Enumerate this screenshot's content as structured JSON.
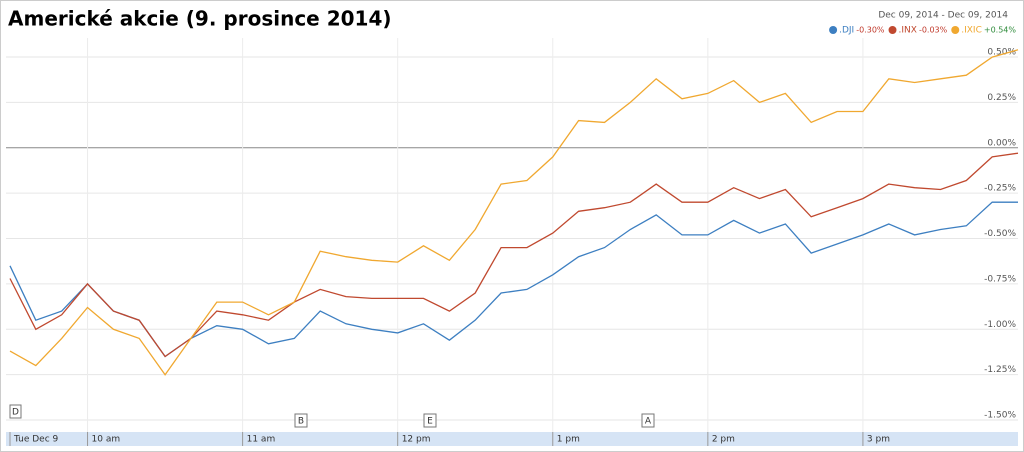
{
  "chart_data": {
    "type": "line",
    "title": "Americké akcie (9. prosince 2014)",
    "date_range": "Dec 09, 2014 - Dec 09, 2014",
    "annotations": [
      "D",
      "B",
      "E",
      "A"
    ],
    "categories": [
      "Tue Dec 9",
      null,
      null,
      "10 am",
      null,
      null,
      null,
      null,
      null,
      "11 am",
      null,
      null,
      null,
      null,
      null,
      "12 pm",
      null,
      null,
      null,
      null,
      null,
      "1 pm",
      null,
      null,
      null,
      null,
      null,
      "2 pm",
      null,
      null,
      null,
      null,
      null,
      "3 pm",
      null,
      null,
      null,
      null,
      null,
      null
    ],
    "series": [
      {
        "name": ".DJI",
        "change": "-0.30%",
        "change_color": "#c0392b",
        "color": "#3d7fc1",
        "values": [
          -0.65,
          -0.95,
          -0.9,
          -0.75,
          -0.9,
          -0.95,
          -1.15,
          -1.05,
          -0.98,
          -1.0,
          -1.08,
          -1.05,
          -0.9,
          -0.97,
          -1.0,
          -1.02,
          -0.97,
          -1.06,
          -0.95,
          -0.8,
          -0.78,
          -0.7,
          -0.6,
          -0.55,
          -0.45,
          -0.37,
          -0.48,
          -0.48,
          -0.4,
          -0.47,
          -0.42,
          -0.58,
          -0.53,
          -0.48,
          -0.42,
          -0.48,
          -0.45,
          -0.43,
          -0.3,
          -0.3
        ]
      },
      {
        "name": ".INX",
        "change": "-0.03%",
        "change_color": "#c0392b",
        "color": "#c0492f",
        "values": [
          -0.72,
          -1.0,
          -0.92,
          -0.75,
          -0.9,
          -0.95,
          -1.15,
          -1.05,
          -0.9,
          -0.92,
          -0.95,
          -0.85,
          -0.78,
          -0.82,
          -0.83,
          -0.83,
          -0.83,
          -0.9,
          -0.8,
          -0.55,
          -0.55,
          -0.47,
          -0.35,
          -0.33,
          -0.3,
          -0.2,
          -0.3,
          -0.3,
          -0.22,
          -0.28,
          -0.23,
          -0.38,
          -0.33,
          -0.28,
          -0.2,
          -0.22,
          -0.23,
          -0.18,
          -0.05,
          -0.03
        ]
      },
      {
        "name": ".IXIC",
        "change": "+0.54%",
        "change_color": "#2e8b3a",
        "color": "#f0a830",
        "values": [
          -1.12,
          -1.2,
          -1.05,
          -0.88,
          -1.0,
          -1.05,
          -1.25,
          -1.05,
          -0.85,
          -0.85,
          -0.92,
          -0.85,
          -0.57,
          -0.6,
          -0.62,
          -0.63,
          -0.54,
          -0.62,
          -0.45,
          -0.2,
          -0.18,
          -0.05,
          0.15,
          0.14,
          0.25,
          0.38,
          0.27,
          0.3,
          0.37,
          0.25,
          0.3,
          0.14,
          0.2,
          0.2,
          0.38,
          0.36,
          0.38,
          0.4,
          0.5,
          0.54
        ]
      }
    ],
    "ylim": [
      -1.566,
      0.605
    ],
    "yticks": [
      {
        "value": 0.5,
        "label": "0.50%"
      },
      {
        "value": 0.25,
        "label": "0.25%"
      },
      {
        "value": 0,
        "label": "0.00%"
      },
      {
        "value": -0.25,
        "label": "-0.25%"
      },
      {
        "value": -0.5,
        "label": "-0.50%"
      },
      {
        "value": -0.75,
        "label": "-0.75%"
      },
      {
        "value": -1,
        "label": "-1.00%"
      },
      {
        "value": -1.25,
        "label": "-1.25%"
      },
      {
        "value": -1.5,
        "label": "-1.50%"
      }
    ],
    "grid": true
  }
}
